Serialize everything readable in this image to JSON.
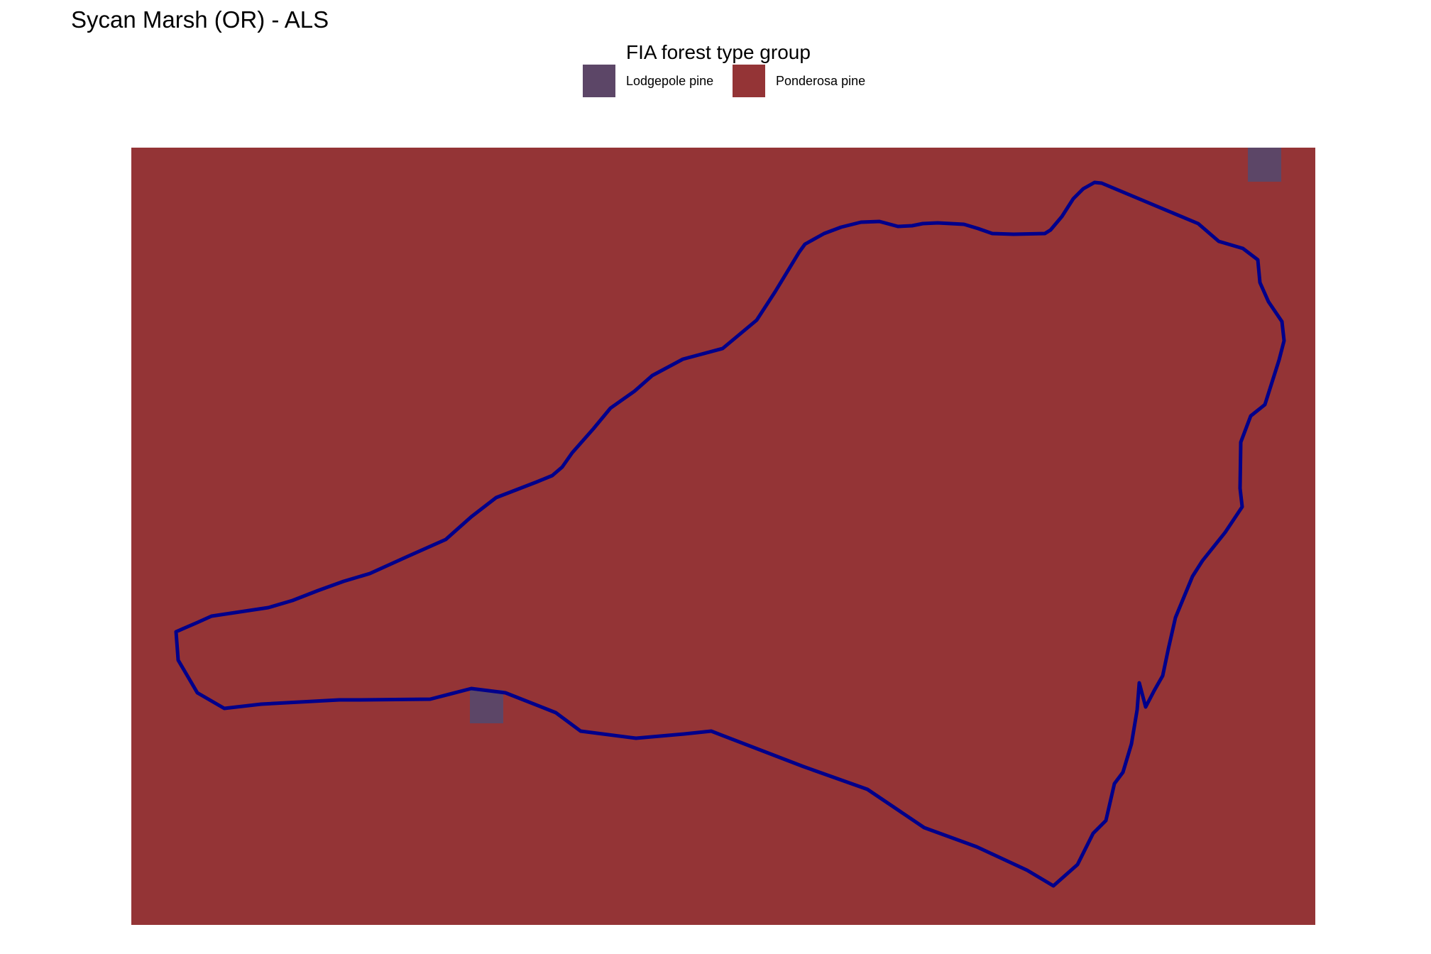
{
  "title": "Sycan Marsh (OR) - ALS",
  "legend": {
    "title": "FIA forest type group",
    "items": [
      {
        "label": "Lodgepole pine",
        "color": "#5c4667"
      },
      {
        "label": "Ponderosa pine",
        "color": "#943436"
      }
    ]
  },
  "colors": {
    "background_class": "#943436",
    "patch_class": "#5c4667",
    "boundary": "#00008b"
  }
}
